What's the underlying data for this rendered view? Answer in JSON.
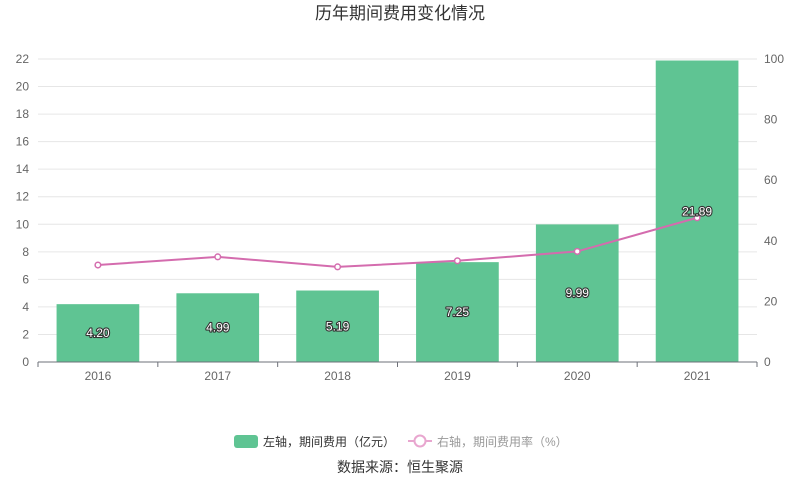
{
  "chart_data": {
    "type": "bar",
    "title": "历年期间费用变化情况",
    "categories": [
      "2016",
      "2017",
      "2018",
      "2019",
      "2020",
      "2021"
    ],
    "series": [
      {
        "name": "左轴，期间费用（亿元）",
        "type": "bar",
        "axis": "left",
        "color": "#5fc493",
        "values": [
          4.2,
          4.99,
          5.19,
          7.25,
          9.99,
          21.89
        ],
        "labels": [
          "4.20",
          "4.99",
          "5.19",
          "7.25",
          "9.99",
          "21.89"
        ]
      },
      {
        "name": "右轴，期间费用率（%）",
        "type": "line",
        "axis": "right",
        "color": "#d46cae",
        "values": [
          32.0,
          34.7,
          31.4,
          33.4,
          36.5,
          47.6
        ]
      }
    ],
    "y_left": {
      "min": 0,
      "max": 22,
      "ticks": [
        0,
        2,
        4,
        6,
        8,
        10,
        12,
        14,
        16,
        18,
        20,
        22
      ]
    },
    "y_right": {
      "min": 0,
      "max": 100,
      "ticks": [
        0,
        20,
        40,
        60,
        80,
        100
      ]
    },
    "grid": true,
    "legend_position": "bottom",
    "source": "数据来源：恒生聚源"
  }
}
